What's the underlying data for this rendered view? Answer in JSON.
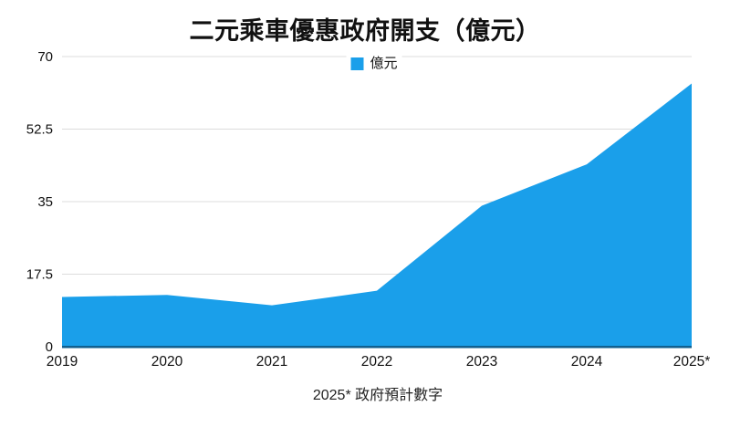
{
  "title": "二元乘車優惠政府開支（億元）",
  "legend": {
    "label": "億元",
    "swatch_color": "#1A9FEA"
  },
  "footnote": "2025* 政府預計數字",
  "chart_data": {
    "type": "area",
    "categories": [
      "2019",
      "2020",
      "2021",
      "2022",
      "2023",
      "2024",
      "2025*"
    ],
    "series": [
      {
        "name": "億元",
        "values": [
          12,
          12.5,
          10,
          13.5,
          34,
          44,
          63.5
        ]
      }
    ],
    "title": "二元乘車優惠政府開支（億元）",
    "xlabel": "",
    "ylabel": "",
    "ylim": [
      0,
      70
    ],
    "yticks": [
      0,
      17.5,
      35,
      52.5,
      70
    ],
    "ytick_labels": [
      "0",
      "17.5",
      "35",
      "52.5",
      "70"
    ],
    "grid": true,
    "legend_position": "top-center",
    "annotation": "2025* 政府預計數字",
    "colors": {
      "area": "#1A9FEA",
      "gridline": "#DCDCDC",
      "axis_line": "#11608F",
      "text": "#111111"
    }
  }
}
